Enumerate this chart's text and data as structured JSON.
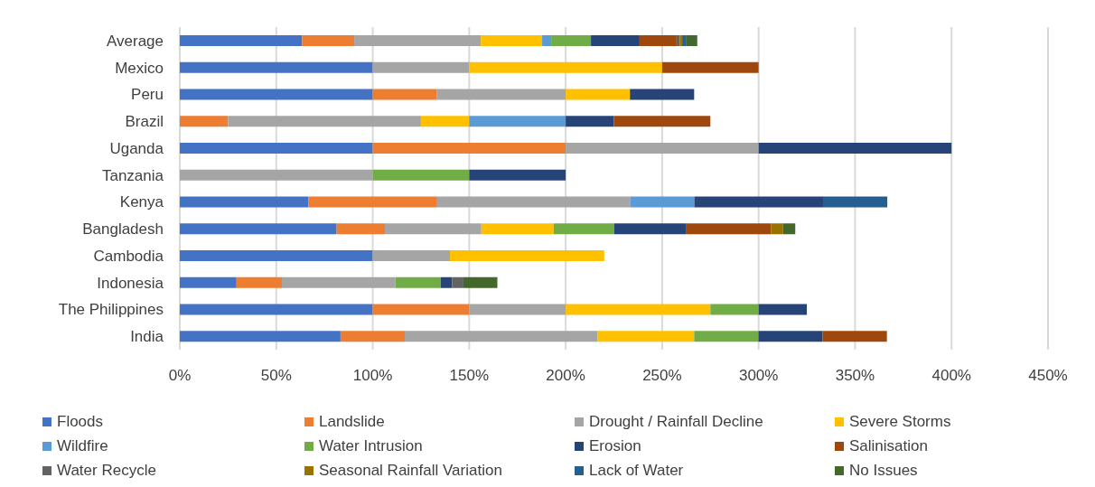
{
  "chart_data": {
    "type": "bar",
    "orientation": "horizontal",
    "stacked": true,
    "categories": [
      "Average",
      "Mexico",
      "Peru",
      "Brazil",
      "Uganda",
      "Tanzania",
      "Kenya",
      "Bangladesh",
      "Cambodia",
      "Indonesia",
      "The Philippines",
      "India"
    ],
    "series": [
      {
        "name": "Floods",
        "color": "#4472c4",
        "values": [
          63.4,
          100,
          100,
          null,
          100,
          null,
          66.7,
          81.3,
          100,
          29.4,
          100,
          83.3
        ]
      },
      {
        "name": "Landslide",
        "color": "#ed7d31",
        "values": [
          27.0,
          null,
          33.3,
          25,
          100,
          null,
          66.7,
          25,
          null,
          23.5,
          50,
          33.3
        ]
      },
      {
        "name": "Drought / Rainfall Decline",
        "color": "#a5a5a5",
        "values": [
          65.6,
          50,
          66.7,
          100,
          100,
          100,
          100,
          50,
          40,
          58.8,
          50,
          100
        ]
      },
      {
        "name": "Severe Storms",
        "color": "#ffc000",
        "values": [
          31.8,
          100,
          33.3,
          25,
          null,
          null,
          null,
          37.5,
          80,
          null,
          75,
          50
        ]
      },
      {
        "name": "Wildfire",
        "color": "#5b9bd5",
        "values": [
          4.7,
          null,
          null,
          50,
          null,
          null,
          33.3,
          null,
          null,
          null,
          null,
          null
        ]
      },
      {
        "name": "Water Intrusion",
        "color": "#70ad47",
        "values": [
          20.6,
          null,
          null,
          null,
          null,
          50,
          null,
          31.3,
          null,
          23.5,
          25,
          33.3
        ]
      },
      {
        "name": "Erosion",
        "color": "#264478",
        "values": [
          25.2,
          null,
          33.3,
          25,
          100,
          50,
          66.7,
          37.5,
          null,
          5.9,
          25,
          33.3
        ]
      },
      {
        "name": "Salinisation",
        "color": "#9e480e",
        "values": [
          19.2,
          50,
          null,
          50,
          null,
          null,
          null,
          43.8,
          null,
          null,
          null,
          33.3
        ]
      },
      {
        "name": "Water Recycle",
        "color": "#636363",
        "values": [
          1.7,
          null,
          null,
          null,
          null,
          null,
          null,
          null,
          null,
          5.9,
          null,
          null
        ]
      },
      {
        "name": "Seasonal Rainfall Variation",
        "color": "#997300",
        "values": [
          1.2,
          null,
          null,
          null,
          null,
          null,
          null,
          6.3,
          null,
          null,
          null,
          null
        ]
      },
      {
        "name": "Lack of Water",
        "color": "#255e91",
        "values": [
          1.9,
          null,
          null,
          null,
          null,
          null,
          33.3,
          null,
          null,
          null,
          null,
          null
        ]
      },
      {
        "name": "No Issues",
        "color": "#43682b",
        "values": [
          5.9,
          null,
          null,
          null,
          null,
          null,
          null,
          6.3,
          null,
          17.6,
          null,
          null
        ]
      }
    ],
    "xlim": [
      0,
      450
    ],
    "xticks": [
      {
        "value": 0,
        "label": "0%"
      },
      {
        "value": 50,
        "label": "50%"
      },
      {
        "value": 100,
        "label": "100%"
      },
      {
        "value": 150,
        "label": "150%"
      },
      {
        "value": 200,
        "label": "200%"
      },
      {
        "value": 250,
        "label": "250%"
      },
      {
        "value": 300,
        "label": "300%"
      },
      {
        "value": 350,
        "label": "350%"
      },
      {
        "value": 400,
        "label": "400%"
      },
      {
        "value": 450,
        "label": "450%"
      }
    ],
    "grid": "x",
    "legend": "bottom"
  }
}
